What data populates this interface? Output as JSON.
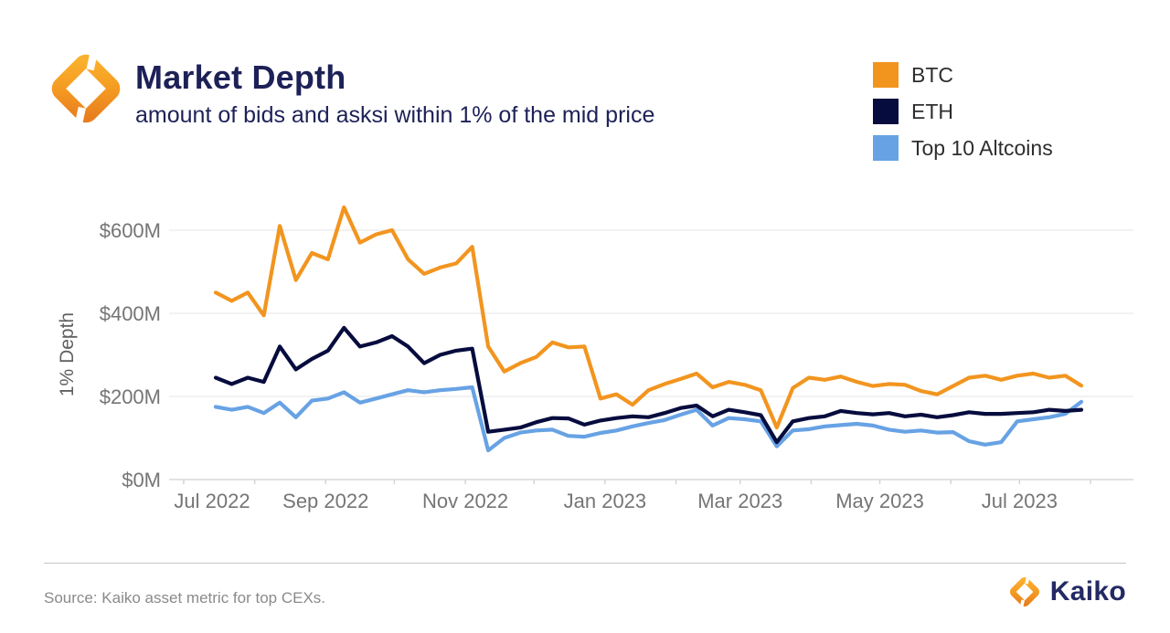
{
  "header": {
    "title": "Market Depth",
    "subtitle": "amount of bids and asksi within 1% of the mid price"
  },
  "legend": {
    "items": [
      {
        "label": "BTC",
        "color": "#F2951F"
      },
      {
        "label": "ETH",
        "color": "#070C3E"
      },
      {
        "label": "Top 10 Altcoins",
        "color": "#67A2E4"
      }
    ]
  },
  "chart_data": {
    "type": "line",
    "title": "Market Depth",
    "subtitle": "amount of bids and asksi within 1% of the mid price",
    "ylabel": "1% Depth",
    "xlabel": "",
    "y_unit": "$M",
    "ylim": [
      0,
      680
    ],
    "grid": "horizontal",
    "legend_position": "top-right",
    "y_ticks": [
      0,
      200,
      400,
      600
    ],
    "y_tick_labels": [
      "$0M",
      "$200M",
      "$400M",
      "$600M"
    ],
    "x_tick_labels": [
      "Jul 2022",
      "Sep 2022",
      "Nov 2022",
      "Jan 2023",
      "Mar 2023",
      "May 2023",
      "Jul 2023"
    ],
    "x_tick_dates": [
      "2022-07-01",
      "2022-09-01",
      "2022-11-01",
      "2023-01-01",
      "2023-03-01",
      "2023-05-01",
      "2023-07-01"
    ],
    "x": [
      "2022-07-15",
      "2022-07-22",
      "2022-07-29",
      "2022-08-05",
      "2022-08-12",
      "2022-08-19",
      "2022-08-26",
      "2022-09-02",
      "2022-09-09",
      "2022-09-16",
      "2022-09-23",
      "2022-09-30",
      "2022-10-07",
      "2022-10-14",
      "2022-10-21",
      "2022-10-28",
      "2022-11-04",
      "2022-11-11",
      "2022-11-18",
      "2022-11-25",
      "2022-12-02",
      "2022-12-09",
      "2022-12-16",
      "2022-12-23",
      "2022-12-30",
      "2023-01-06",
      "2023-01-13",
      "2023-01-20",
      "2023-01-27",
      "2023-02-03",
      "2023-02-10",
      "2023-02-17",
      "2023-02-24",
      "2023-03-03",
      "2023-03-10",
      "2023-03-17",
      "2023-03-24",
      "2023-03-31",
      "2023-04-07",
      "2023-04-14",
      "2023-04-21",
      "2023-04-28",
      "2023-05-05",
      "2023-05-12",
      "2023-05-19",
      "2023-05-26",
      "2023-06-02",
      "2023-06-09",
      "2023-06-16",
      "2023-06-23",
      "2023-06-30",
      "2023-07-07",
      "2023-07-14",
      "2023-07-21",
      "2023-07-28"
    ],
    "series": [
      {
        "name": "BTC",
        "color": "#F2951F",
        "values": [
          450,
          430,
          450,
          395,
          610,
          480,
          545,
          530,
          655,
          570,
          590,
          600,
          530,
          495,
          510,
          520,
          560,
          320,
          260,
          280,
          295,
          330,
          318,
          320,
          195,
          205,
          180,
          215,
          230,
          242,
          255,
          222,
          235,
          228,
          215,
          125,
          220,
          245,
          240,
          248,
          235,
          225,
          230,
          228,
          213,
          205,
          225,
          245,
          250,
          240,
          250,
          255,
          245,
          250,
          226
        ]
      },
      {
        "name": "ETH",
        "color": "#070C3E",
        "values": [
          245,
          230,
          245,
          235,
          320,
          265,
          290,
          310,
          365,
          320,
          330,
          345,
          320,
          280,
          300,
          310,
          315,
          115,
          120,
          125,
          138,
          148,
          147,
          132,
          142,
          148,
          152,
          150,
          160,
          172,
          178,
          152,
          168,
          162,
          155,
          90,
          140,
          148,
          152,
          165,
          160,
          157,
          160,
          152,
          156,
          150,
          155,
          162,
          158,
          158,
          160,
          162,
          168,
          165,
          168
        ]
      },
      {
        "name": "Top 10 Altcoins",
        "color": "#67A2E4",
        "values": [
          175,
          168,
          175,
          160,
          185,
          150,
          190,
          195,
          210,
          185,
          195,
          205,
          215,
          210,
          215,
          218,
          222,
          70,
          100,
          113,
          118,
          120,
          105,
          103,
          112,
          118,
          128,
          136,
          143,
          156,
          168,
          130,
          148,
          145,
          140,
          80,
          118,
          121,
          128,
          131,
          134,
          130,
          120,
          115,
          118,
          113,
          114,
          92,
          84,
          90,
          140,
          145,
          150,
          158,
          187
        ]
      }
    ]
  },
  "footer": {
    "source": "Source: Kaiko asset metric for top CEXs.",
    "brand": "Kaiko"
  }
}
